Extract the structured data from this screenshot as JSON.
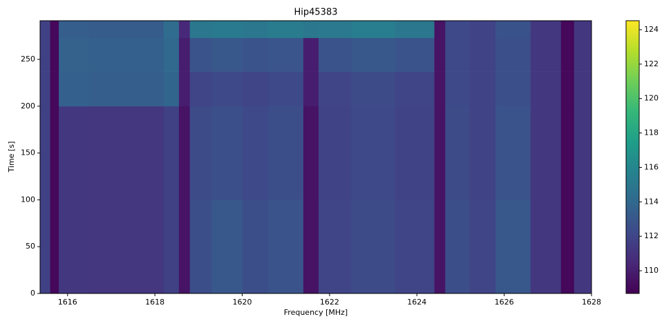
{
  "chart_data": {
    "type": "heatmap",
    "title": "Hip45383",
    "x_label": "Frequency [MHz]",
    "y_label": "Time [s]",
    "cmap": "viridis",
    "x_edges": [
      1615.37,
      1615.6,
      1615.8,
      1616.5,
      1618.2,
      1618.55,
      1618.8,
      1619.3,
      1620,
      1620.6,
      1621.4,
      1621.75,
      1622.5,
      1623.5,
      1624.4,
      1624.65,
      1625.2,
      1625.8,
      1626.6,
      1627.3,
      1627.6,
      1628
    ],
    "y_edges": [
      0,
      100,
      200,
      237,
      273,
      291.3
    ],
    "z": [
      [
        111.8,
        109,
        111.3,
        111.2,
        111.8,
        109.5,
        112.5,
        113,
        112.5,
        112.8,
        109.5,
        112,
        112.3,
        112,
        109.5,
        112.5,
        112,
        113,
        111.3,
        109,
        111.3
      ],
      [
        111.8,
        109,
        111.3,
        111.2,
        111.8,
        109.5,
        112.3,
        112.6,
        112.2,
        112.5,
        109.5,
        111.9,
        112.2,
        111.9,
        109.5,
        112.3,
        111.9,
        112.8,
        111.3,
        109,
        111.3
      ],
      [
        111.8,
        109,
        113.5,
        113.4,
        113.8,
        110,
        112,
        112.2,
        112,
        112.2,
        110,
        112,
        112.3,
        112,
        109.5,
        112.2,
        111.9,
        112.6,
        111.3,
        109,
        111.3
      ],
      [
        111.8,
        109,
        113.6,
        113.5,
        114,
        110,
        112.8,
        113,
        112.8,
        112.9,
        110,
        112.8,
        113,
        112.8,
        109.5,
        112.2,
        111.9,
        112.6,
        111.3,
        109,
        111.3
      ],
      [
        111.8,
        109,
        113.4,
        113.3,
        114.2,
        110.5,
        115,
        115.2,
        115,
        115.3,
        115,
        115.1,
        115.4,
        115,
        109.5,
        112.2,
        111.9,
        112.7,
        111.3,
        109,
        111.3
      ]
    ],
    "xlim": [
      1615.37,
      1628
    ],
    "xticks": [
      1616,
      1618,
      1620,
      1622,
      1624,
      1626,
      1628
    ],
    "ylim": [
      0,
      291.3
    ],
    "yticks": [
      0,
      50,
      100,
      150,
      200,
      250
    ],
    "clim": [
      108.68,
      124.52
    ],
    "cticks": [
      110,
      112,
      114,
      116,
      118,
      120,
      122,
      124
    ]
  }
}
